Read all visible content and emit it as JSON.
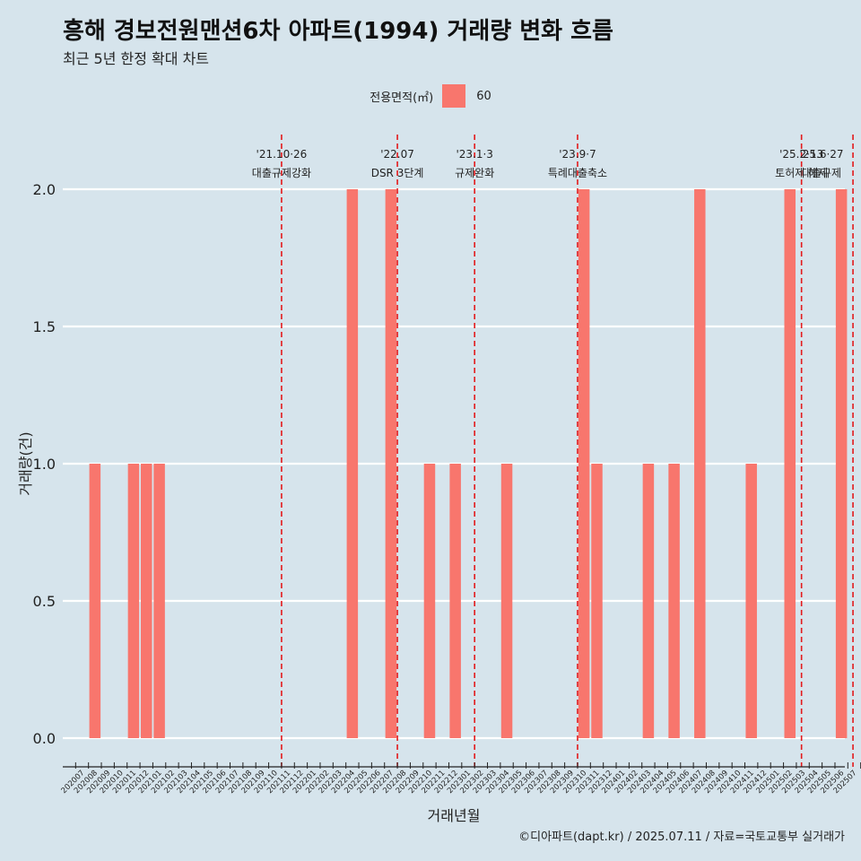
{
  "header": {
    "title": "흥해 경보전원맨션6차 아파트(1994) 거래량 변화 흐름",
    "subtitle": "최근 5년 한정 확대 차트"
  },
  "legend": {
    "title": "전용면적(㎡)",
    "item": "60",
    "color": "#f8766d"
  },
  "caption": "©디아파트(dapt.kr) / 2025.07.11 / 자료=국토교통부 실거래가",
  "colors": {
    "background": "#d6e4ec",
    "bar": "#f8766d",
    "event_line": "#e31a1c",
    "grid": "#ffffff"
  },
  "chart_data": {
    "type": "bar",
    "xlabel": "거래년월",
    "ylabel": "거래량(건)",
    "ylim": [
      0,
      2
    ],
    "yticks": [
      "0.0",
      "0.5",
      "1.0",
      "1.5",
      "2.0"
    ],
    "ytick_values": [
      0,
      0.5,
      1,
      1.5,
      2
    ],
    "grid": true,
    "legend_position": "top",
    "categories": [
      "202007",
      "202008",
      "202009",
      "202010",
      "202011",
      "202012",
      "202101",
      "202102",
      "202103",
      "202104",
      "202105",
      "202106",
      "202107",
      "202108",
      "202109",
      "202110",
      "202111",
      "202112",
      "202201",
      "202202",
      "202203",
      "202204",
      "202205",
      "202206",
      "202207",
      "202208",
      "202209",
      "202210",
      "202211",
      "202212",
      "202301",
      "202302",
      "202303",
      "202304",
      "202305",
      "202306",
      "202307",
      "202308",
      "202309",
      "202310",
      "202311",
      "202312",
      "202401",
      "202402",
      "202403",
      "202404",
      "202405",
      "202406",
      "202407",
      "202408",
      "202409",
      "202410",
      "202411",
      "202412",
      "202501",
      "202502",
      "202503",
      "202504",
      "202505",
      "202506",
      "202507"
    ],
    "series": [
      {
        "name": "60",
        "values": [
          0,
          1,
          0,
          0,
          1,
          1,
          1,
          0,
          0,
          0,
          0,
          0,
          0,
          0,
          0,
          0,
          0,
          0,
          0,
          0,
          0,
          2,
          0,
          0,
          2,
          0,
          0,
          1,
          0,
          1,
          0,
          0,
          0,
          1,
          0,
          0,
          0,
          0,
          0,
          2,
          1,
          0,
          0,
          0,
          1,
          0,
          1,
          0,
          2,
          0,
          0,
          0,
          1,
          0,
          0,
          2,
          0,
          0,
          0,
          2,
          0
        ]
      }
    ],
    "events": [
      {
        "date": "'21.10·26",
        "label": "대출규제강화",
        "position": 15.5
      },
      {
        "date": "'22.07",
        "label": "DSR 3단계",
        "position": 24.5
      },
      {
        "date": "'23.1·3",
        "label": "규제완화",
        "position": 30.5
      },
      {
        "date": "'23.9·7",
        "label": "특례대출축소",
        "position": 38.5
      },
      {
        "date": "'25.2·13",
        "label": "토허제 해제",
        "position": 55.9
      },
      {
        "date": "'25.6·27",
        "label": "대출규제",
        "position": 59.9
      }
    ]
  }
}
